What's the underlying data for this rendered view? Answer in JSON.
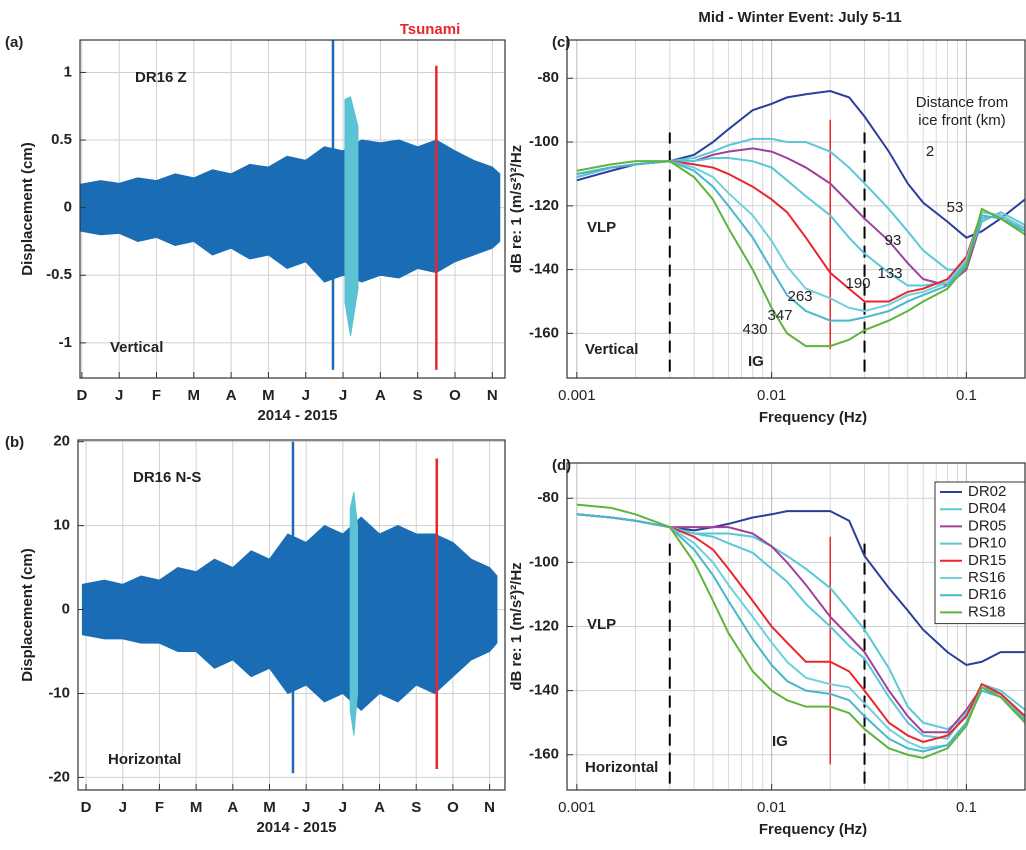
{
  "chart_data": [
    {
      "type": "band",
      "panel": "(a)",
      "station": "DR16  Z",
      "component": "Vertical",
      "annotation": "Tsunami",
      "annotation_color": "#e8262c",
      "ylabel": "Displacement  (cm)",
      "xlabel": "2014 - 2015",
      "xlim": [
        -0.05,
        11.34
      ],
      "xticks": [
        {
          "value": 0,
          "label": "D"
        },
        {
          "value": 1,
          "label": "J"
        },
        {
          "value": 2,
          "label": "F"
        },
        {
          "value": 3,
          "label": "M"
        },
        {
          "value": 4,
          "label": "A"
        },
        {
          "value": 5,
          "label": "M"
        },
        {
          "value": 6,
          "label": "J"
        },
        {
          "value": 7,
          "label": "J"
        },
        {
          "value": 8,
          "label": "A"
        },
        {
          "value": 9,
          "label": "S"
        },
        {
          "value": 10,
          "label": "O"
        },
        {
          "value": 11,
          "label": "N"
        }
      ],
      "ylim": [
        -1.26,
        1.24
      ],
      "yticks": [
        -1,
        -0.5,
        0,
        0.5,
        1
      ],
      "grid": true,
      "series": [
        {
          "color": "#1a6db5",
          "x": [
            -0.1,
            0.5,
            1,
            1.5,
            2,
            2.5,
            3,
            3.5,
            4,
            4.5,
            5,
            5.5,
            6,
            6.5,
            7,
            7.5,
            8,
            8.5,
            9,
            9.5,
            10,
            10.5,
            11,
            11.2
          ],
          "upper": [
            0.17,
            0.2,
            0.18,
            0.22,
            0.2,
            0.25,
            0.22,
            0.28,
            0.25,
            0.32,
            0.3,
            0.38,
            0.35,
            0.45,
            0.42,
            0.5,
            0.48,
            0.5,
            0.45,
            0.5,
            0.42,
            0.35,
            0.3,
            0.25
          ],
          "lower": [
            -0.17,
            -0.2,
            -0.19,
            -0.25,
            -0.22,
            -0.28,
            -0.25,
            -0.35,
            -0.3,
            -0.38,
            -0.35,
            -0.45,
            -0.4,
            -0.55,
            -0.5,
            -0.55,
            -0.5,
            -0.52,
            -0.45,
            -0.48,
            -0.4,
            -0.35,
            -0.3,
            -0.25
          ]
        },
        {
          "color": "#5bc3d3",
          "x": [
            7.05,
            7.2,
            7.4
          ],
          "upper": [
            0.8,
            0.82,
            0.6
          ],
          "lower": [
            -0.7,
            -0.95,
            -0.6
          ]
        }
      ],
      "spikes": [
        {
          "color": "#1a6db5",
          "x": 6.73,
          "y": [
            -1.2,
            1.25
          ]
        },
        {
          "color": "#e8262c",
          "x": 9.5,
          "y": [
            -1.2,
            1.05
          ]
        }
      ]
    },
    {
      "type": "band",
      "panel": "(b)",
      "station": "DR16  N-S",
      "component": "Horizontal",
      "ylabel": "Displacement  (cm)",
      "xlabel": "2014 - 2015",
      "xlim": [
        -0.22,
        11.42
      ],
      "xticks": [
        {
          "value": 0,
          "label": "D"
        },
        {
          "value": 1,
          "label": "J"
        },
        {
          "value": 2,
          "label": "F"
        },
        {
          "value": 3,
          "label": "M"
        },
        {
          "value": 4,
          "label": "A"
        },
        {
          "value": 5,
          "label": "M"
        },
        {
          "value": 6,
          "label": "J"
        },
        {
          "value": 7,
          "label": "J"
        },
        {
          "value": 8,
          "label": "A"
        },
        {
          "value": 9,
          "label": "S"
        },
        {
          "value": 10,
          "label": "O"
        },
        {
          "value": 11,
          "label": "N"
        }
      ],
      "ylim": [
        -21.5,
        20.2
      ],
      "yticks": [
        -20,
        -10,
        0,
        10,
        20
      ],
      "grid": true,
      "series": [
        {
          "color": "#1a6db5",
          "x": [
            -0.1,
            0.5,
            1,
            1.5,
            2,
            2.5,
            3,
            3.5,
            4,
            4.5,
            5,
            5.5,
            6,
            6.5,
            7,
            7.5,
            8,
            8.5,
            9,
            9.5,
            10,
            10.5,
            11,
            11.2
          ],
          "upper": [
            3,
            3.5,
            3,
            4,
            3.5,
            5,
            4.5,
            6,
            5,
            7,
            6,
            9,
            8,
            10,
            9,
            11,
            9,
            10,
            9,
            9,
            8,
            6,
            5,
            4
          ],
          "lower": [
            -3,
            -3.5,
            -3.5,
            -4,
            -4,
            -5,
            -5,
            -7,
            -6,
            -8,
            -7,
            -10,
            -9,
            -11,
            -10,
            -12,
            -10,
            -11,
            -9,
            -10,
            -8,
            -6,
            -5,
            -4
          ]
        },
        {
          "color": "#5bc3d3",
          "x": [
            7.2,
            7.3,
            7.4
          ],
          "upper": [
            12,
            14,
            10
          ],
          "lower": [
            -12,
            -15,
            -10
          ]
        }
      ],
      "spikes": [
        {
          "color": "#1a6db5",
          "x": 5.64,
          "y": [
            -19.5,
            20
          ]
        },
        {
          "color": "#e8262c",
          "x": 9.56,
          "y": [
            -19,
            18
          ]
        }
      ]
    },
    {
      "type": "line",
      "title": "Mid - Winter  Event:  July 5-11",
      "panel": "(c)",
      "xlabel": "Frequency (Hz)",
      "ylabel": "dB re: 1 (m/s²)²/Hz",
      "xscale": "log",
      "xlim": [
        0.00089,
        0.2
      ],
      "xticks": [
        0.001,
        0.01,
        0.1
      ],
      "xminor": [
        0.002,
        0.003,
        0.004,
        0.005,
        0.006,
        0.007,
        0.008,
        0.009,
        0.02,
        0.03,
        0.04,
        0.05,
        0.06,
        0.07,
        0.08,
        0.09,
        0.2
      ],
      "ylim": [
        -174,
        -68
      ],
      "yticks": [
        -160,
        -140,
        -120,
        -100,
        -80
      ],
      "grid": true,
      "vlp": "VLP",
      "component": "Vertical",
      "band": "IG",
      "note": [
        "Distance from",
        "ice front (km)"
      ],
      "x": [
        0.001,
        0.0015,
        0.002,
        0.003,
        0.004,
        0.005,
        0.006,
        0.008,
        0.01,
        0.012,
        0.015,
        0.02,
        0.025,
        0.03,
        0.04,
        0.05,
        0.06,
        0.08,
        0.1,
        0.12,
        0.15,
        0.2
      ],
      "series": [
        {
          "color": "#2b3f9a",
          "label": 2,
          "values": [
            -112,
            -109,
            -107,
            -106,
            -104,
            -100,
            -96,
            -90,
            -88,
            -86,
            -85,
            -84,
            -86,
            -92,
            -103,
            -113,
            -119,
            -125,
            -130,
            -128,
            -124,
            -118
          ]
        },
        {
          "color": "#5bc8d6",
          "label": 53,
          "values": [
            -111,
            -108,
            -107,
            -106,
            -105,
            -103,
            -101,
            -99,
            -99,
            -100,
            -100,
            -103,
            -108,
            -113,
            -121,
            -128,
            -134,
            -140,
            -140,
            -125,
            -122,
            -126
          ]
        },
        {
          "color": "#a0409a",
          "label": 93,
          "values": [
            -111,
            -108,
            -107,
            -106,
            -106,
            -104,
            -103,
            -102,
            -103,
            -105,
            -108,
            -113,
            -119,
            -124,
            -131,
            -138,
            -143,
            -145,
            -140,
            -124,
            -123,
            -128
          ]
        },
        {
          "color": "#5bc8d6",
          "label": 133,
          "values": [
            -111,
            -108,
            -107,
            -106,
            -106,
            -105,
            -105,
            -106,
            -108,
            -112,
            -117,
            -123,
            -130,
            -135,
            -141,
            -145,
            -145,
            -144,
            -138,
            -124,
            -123,
            -128
          ]
        },
        {
          "color": "#e8262c",
          "label": 190,
          "values": [
            -110,
            -108,
            -107,
            -106,
            -107,
            -108,
            -110,
            -114,
            -118,
            -122,
            -130,
            -141,
            -146,
            -150,
            -150,
            -147,
            -146,
            -143,
            -136,
            -122,
            -123,
            -127
          ]
        },
        {
          "color": "#6fd0dc",
          "label": 263,
          "values": [
            -110,
            -108,
            -107,
            -106,
            -108,
            -111,
            -116,
            -123,
            -131,
            -139,
            -146,
            -149,
            -152,
            -153,
            -151,
            -148,
            -147,
            -144,
            -137,
            -122,
            -123,
            -127
          ]
        },
        {
          "color": "#49b6cc",
          "label": 347,
          "values": [
            -110,
            -108,
            -107,
            -106,
            -109,
            -114,
            -120,
            -130,
            -140,
            -148,
            -153,
            -156,
            -156,
            -155,
            -153,
            -150,
            -148,
            -145,
            -138,
            -123,
            -124,
            -128
          ]
        },
        {
          "color": "#5fb43c",
          "label": 430,
          "values": [
            -109,
            -107,
            -106,
            -106,
            -111,
            -118,
            -127,
            -140,
            -152,
            -160,
            -164,
            -164,
            -162,
            -159,
            -156,
            -153,
            -150,
            -146,
            -139,
            -121,
            -124,
            -129
          ]
        }
      ],
      "vlines": [
        {
          "x": 0.003,
          "y": [
            -172,
            -97
          ],
          "color": "#000000",
          "dashed": true
        },
        {
          "x": 0.03,
          "y": [
            -172,
            -97
          ],
          "color": "#000000",
          "dashed": true
        },
        {
          "x": 0.02,
          "y": [
            -165,
            -93
          ],
          "color": "#e8262c",
          "dashed": false
        }
      ]
    },
    {
      "type": "line",
      "panel": "(d)",
      "xlabel": "Frequency  (Hz)",
      "ylabel": "dB re: 1 (m/s²)²/Hz",
      "xscale": "log",
      "xlim": [
        0.00089,
        0.2
      ],
      "xticks": [
        0.001,
        0.01,
        0.1
      ],
      "xminor": [
        0.002,
        0.003,
        0.004,
        0.005,
        0.006,
        0.007,
        0.008,
        0.009,
        0.02,
        0.03,
        0.04,
        0.05,
        0.06,
        0.07,
        0.08,
        0.09,
        0.2
      ],
      "ylim": [
        -171,
        -69
      ],
      "yticks": [
        -160,
        -140,
        -120,
        -100,
        -80
      ],
      "grid": true,
      "legend": "top-right",
      "vlp": "VLP",
      "component": "Horizontal",
      "band": "IG",
      "x": [
        0.001,
        0.0015,
        0.002,
        0.003,
        0.004,
        0.005,
        0.006,
        0.008,
        0.01,
        0.012,
        0.015,
        0.02,
        0.025,
        0.03,
        0.04,
        0.05,
        0.06,
        0.08,
        0.1,
        0.12,
        0.15,
        0.2
      ],
      "series": [
        {
          "name": "DR02",
          "color": "#2b3f9a",
          "values": [
            -85,
            -86,
            -87,
            -89,
            -90,
            -89,
            -88,
            -86,
            -85,
            -84,
            -84,
            -84,
            -87,
            -98,
            -108,
            -115,
            -121,
            -128,
            -132,
            -131,
            -128,
            -128
          ]
        },
        {
          "name": "DR04",
          "color": "#5bc8d6",
          "values": [
            -85,
            -86,
            -87,
            -89,
            -91,
            -91,
            -91,
            -92,
            -95,
            -98,
            -102,
            -108,
            -115,
            -121,
            -133,
            -145,
            -150,
            -152,
            -148,
            -138,
            -140,
            -146
          ]
        },
        {
          "name": "DR05",
          "color": "#a0409a",
          "values": [
            -85,
            -86,
            -87,
            -89,
            -89,
            -89,
            -89,
            -91,
            -95,
            -100,
            -107,
            -117,
            -123,
            -128,
            -140,
            -148,
            -153,
            -153,
            -146,
            -139,
            -141,
            -148
          ]
        },
        {
          "name": "DR10",
          "color": "#5bc8d6",
          "values": [
            -85,
            -86,
            -87,
            -89,
            -91,
            -92,
            -94,
            -97,
            -102,
            -106,
            -113,
            -120,
            -126,
            -130,
            -142,
            -150,
            -154,
            -155,
            -147,
            -139,
            -141,
            -148
          ]
        },
        {
          "name": "DR15",
          "color": "#e8262c",
          "values": [
            -85,
            -86,
            -87,
            -89,
            -92,
            -96,
            -102,
            -112,
            -120,
            -125,
            -131,
            -131,
            -134,
            -140,
            -150,
            -154,
            -156,
            -154,
            -148,
            -138,
            -141,
            -148
          ]
        },
        {
          "name": "RS16",
          "color": "#6fd0dc",
          "values": [
            -85,
            -86,
            -87,
            -89,
            -94,
            -100,
            -107,
            -117,
            -125,
            -131,
            -136,
            -138,
            -139,
            -144,
            -152,
            -156,
            -158,
            -157,
            -150,
            -139,
            -142,
            -149
          ]
        },
        {
          "name": "DR16",
          "color": "#49b6cc",
          "values": [
            -85,
            -86,
            -87,
            -89,
            -96,
            -104,
            -112,
            -124,
            -132,
            -137,
            -140,
            -141,
            -143,
            -148,
            -155,
            -158,
            -159,
            -157,
            -150,
            -140,
            -142,
            -149
          ]
        },
        {
          "name": "RS18",
          "color": "#5fb43c",
          "values": [
            -82,
            -83,
            -85,
            -89,
            -100,
            -112,
            -122,
            -134,
            -140,
            -143,
            -145,
            -145,
            -147,
            -152,
            -158,
            -160,
            -161,
            -158,
            -151,
            -139,
            -142,
            -150
          ]
        }
      ],
      "vlines": [
        {
          "x": 0.003,
          "y": [
            -169,
            -93
          ],
          "color": "#000000",
          "dashed": true
        },
        {
          "x": 0.03,
          "y": [
            -169,
            -93
          ],
          "color": "#000000",
          "dashed": true
        },
        {
          "x": 0.02,
          "y": [
            -163,
            -92
          ],
          "color": "#e8262c",
          "dashed": false
        }
      ]
    }
  ]
}
